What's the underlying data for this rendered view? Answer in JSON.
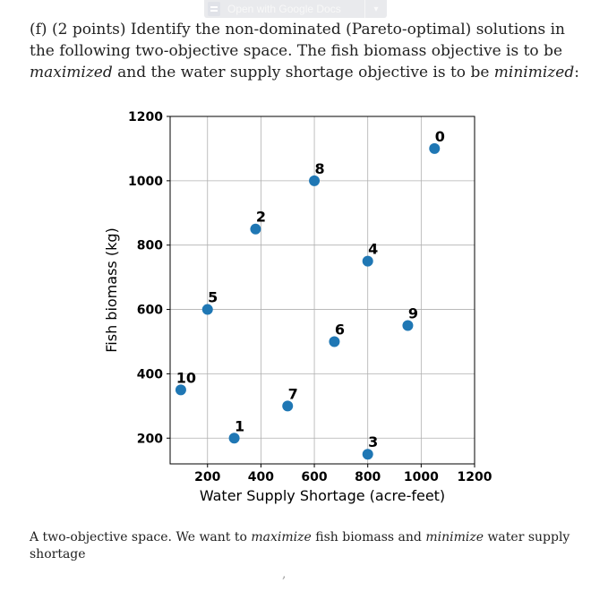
{
  "toolbar": {
    "open_with_label": "Open with Google Docs",
    "caret_glyph": "▾"
  },
  "question": {
    "prefix": "(f) (2 points) Identify the non-dominated (Pareto-optimal) solutions in the following two-objective space. The fish biomass objective is to be ",
    "maximized": "maximized",
    "middle": " and the water supply shortage objective is to be ",
    "minimized": "minimized",
    "suffix": ":"
  },
  "caption": {
    "prefix": "A two-objective space. We want to ",
    "maximize": "maximize",
    "middle": " fish biomass and ",
    "minimize": "minimize",
    "suffix": " water supply shortage"
  },
  "trailing_mark": ",",
  "chart_data": {
    "type": "scatter",
    "title": "",
    "xlabel": "Water Supply Shortage (acre-feet)",
    "ylabel": "Fish biomass (kg)",
    "xlim": [
      60,
      1200
    ],
    "ylim": [
      120,
      1200
    ],
    "xticks": [
      200,
      400,
      600,
      800,
      1000,
      1200
    ],
    "yticks": [
      200,
      400,
      600,
      800,
      1000,
      1200
    ],
    "grid": true,
    "marker_color": "#1f77b4",
    "points": [
      {
        "label": "0",
        "x": 1050,
        "y": 1100
      },
      {
        "label": "1",
        "x": 300,
        "y": 200
      },
      {
        "label": "2",
        "x": 380,
        "y": 850
      },
      {
        "label": "3",
        "x": 800,
        "y": 150
      },
      {
        "label": "4",
        "x": 800,
        "y": 750
      },
      {
        "label": "5",
        "x": 200,
        "y": 600
      },
      {
        "label": "6",
        "x": 675,
        "y": 500
      },
      {
        "label": "7",
        "x": 500,
        "y": 300
      },
      {
        "label": "8",
        "x": 600,
        "y": 1000
      },
      {
        "label": "9",
        "x": 950,
        "y": 550
      },
      {
        "label": "10",
        "x": 100,
        "y": 350
      }
    ]
  }
}
